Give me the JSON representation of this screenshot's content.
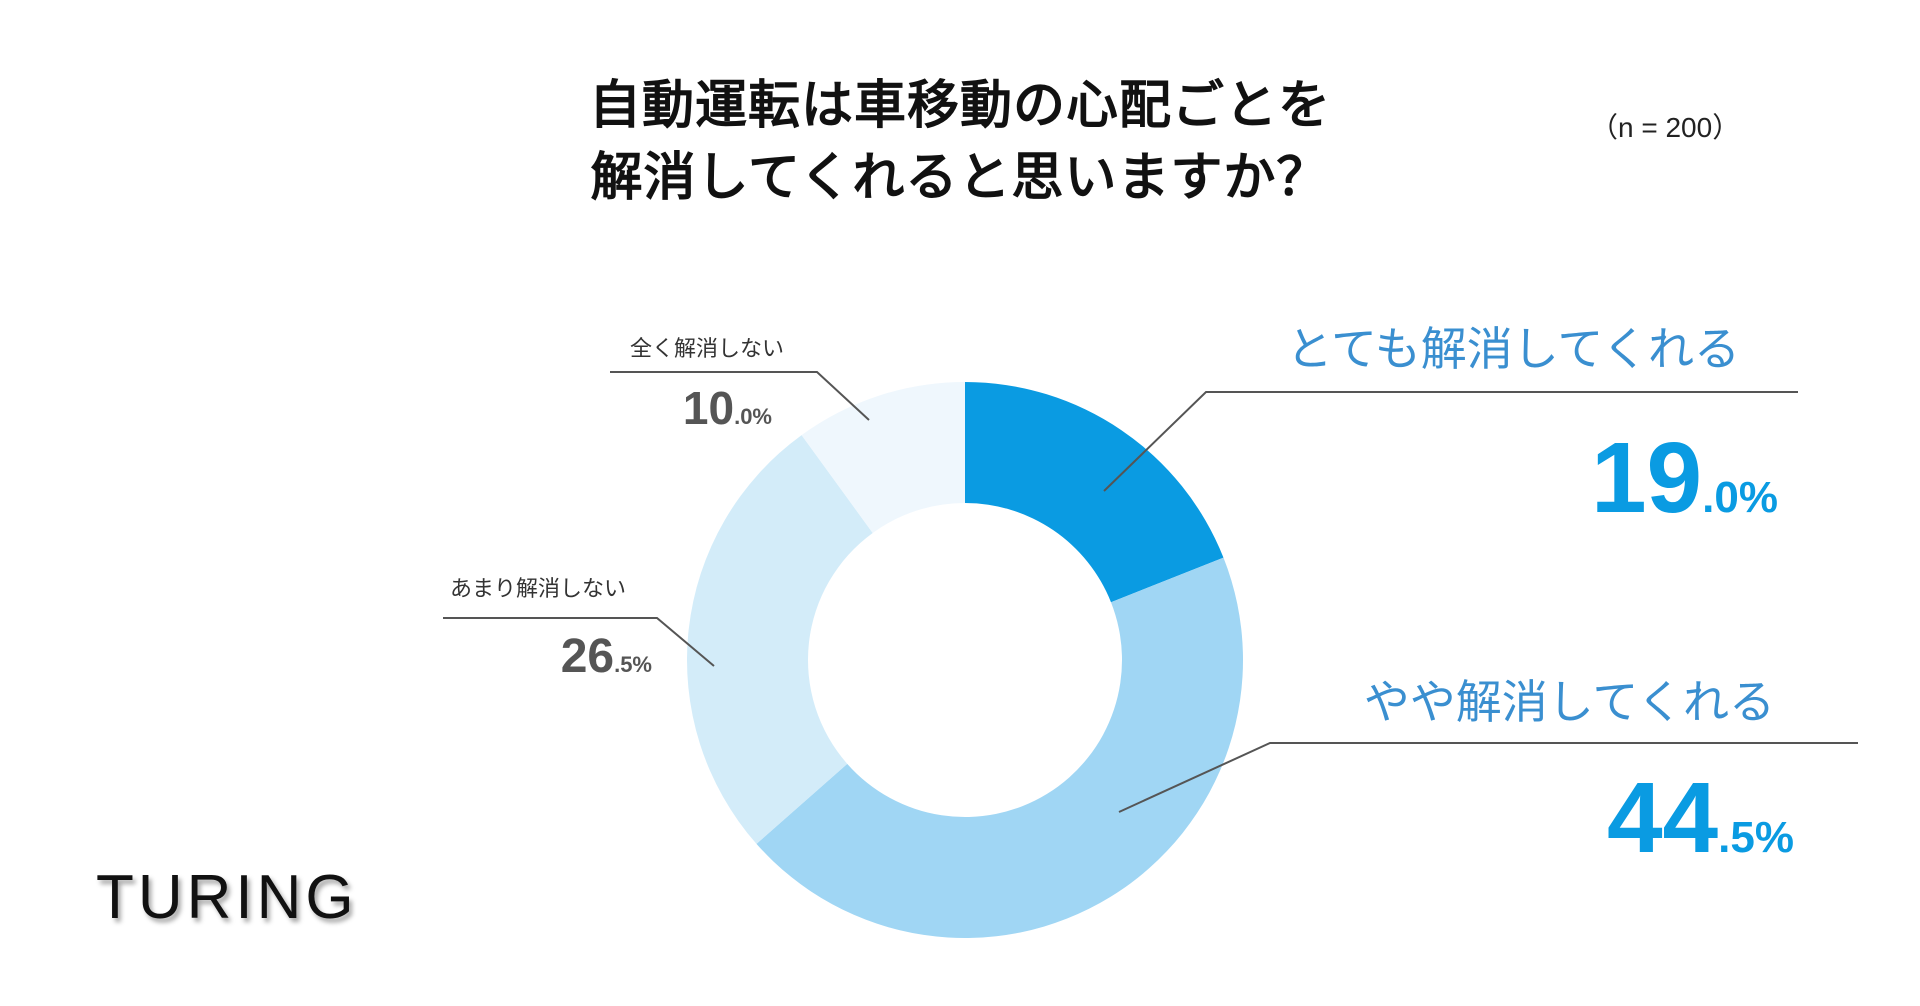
{
  "title_lines": [
    "自動運転は車移動の心配ごとを",
    "解消してくれると思いますか？"
  ],
  "sample_size": "（n = 200）",
  "logo_text": "TURING",
  "chart_data": {
    "type": "pie",
    "donut": true,
    "title": "自動運転は車移動の心配ごとを解消してくれると思いますか？",
    "unit": "%",
    "slices": [
      {
        "label": "とても解消してくれる",
        "value": 19.0,
        "int_part": "19",
        "dec_part": ".0%",
        "color": "#0a9be2"
      },
      {
        "label": "やや解消してくれる",
        "value": 44.5,
        "int_part": "44",
        "dec_part": ".5%",
        "color": "#a0d6f4"
      },
      {
        "label": "あまり解消しない",
        "value": 26.5,
        "int_part": "26",
        "dec_part": ".5%",
        "color": "#d3ecf9"
      },
      {
        "label": "全く解消しない",
        "value": 10.0,
        "int_part": "10",
        "dec_part": ".0%",
        "color": "#eff7fd"
      }
    ],
    "legend": "leader-line labels beside slices"
  }
}
